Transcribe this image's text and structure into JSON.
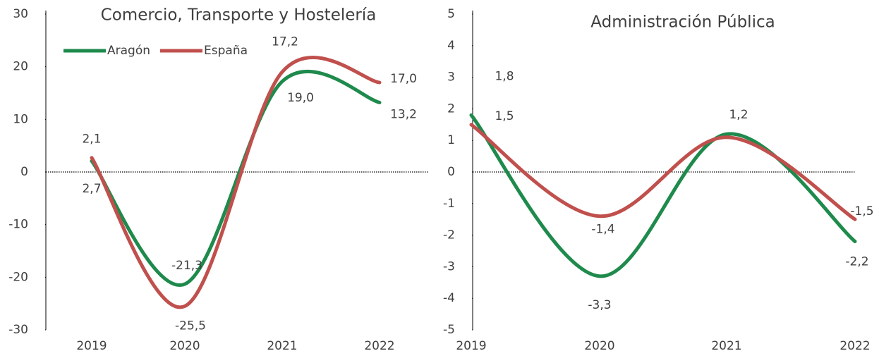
{
  "chart_data": [
    {
      "type": "line",
      "title": "Comercio, Transporte y Hostelería",
      "categories": [
        "2019",
        "2020",
        "2021",
        "2022"
      ],
      "series": [
        {
          "name": "Aragón",
          "color": "#1e8a4c",
          "values": [
            2.1,
            -21.3,
            17.2,
            13.2
          ],
          "value_labels": [
            "2,1",
            "-21,3",
            "17,2",
            "13,2"
          ]
        },
        {
          "name": "España",
          "color": "#c0504d",
          "values": [
            2.7,
            -25.5,
            19.0,
            17.0
          ],
          "value_labels": [
            "2,7",
            "-25,5",
            "19,0",
            "17,0"
          ]
        }
      ],
      "ylim": [
        -30,
        30
      ],
      "yticks": [
        -30,
        -20,
        -10,
        0,
        10,
        20,
        30
      ],
      "legend": "top-left"
    },
    {
      "type": "line",
      "title": "Administración Pública",
      "categories": [
        "2019",
        "2020",
        "2021",
        "2022"
      ],
      "series": [
        {
          "color": "#1e8a4c",
          "values": [
            1.8,
            -3.3,
            1.2,
            -2.2
          ],
          "value_labels": [
            "1,8",
            "-3,3",
            "1,2",
            "-2,2"
          ]
        },
        {
          "color": "#c0504d",
          "values": [
            1.5,
            -1.4,
            1.1,
            -1.5
          ],
          "value_labels": [
            "1,5",
            "-1,4",
            null,
            "-1,5"
          ]
        }
      ],
      "ylim": [
        -5,
        5
      ],
      "yticks": [
        -5,
        -4,
        -3,
        -2,
        -1,
        0,
        1,
        2,
        3,
        4,
        5
      ]
    }
  ]
}
